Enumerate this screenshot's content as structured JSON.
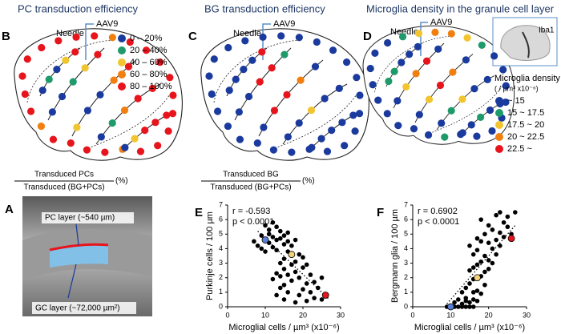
{
  "panels": {
    "B": {
      "letter": "B",
      "title": "PC transduction efficiency",
      "needle": "Needle",
      "vector": "AAV9",
      "legend": [
        {
          "label": "0 – 20%",
          "color": "#1a3a9e"
        },
        {
          "label": "20 – 40%",
          "color": "#1f9a6a"
        },
        {
          "label": "40 – 60%",
          "color": "#f2c530"
        },
        {
          "label": "60 – 80%",
          "color": "#f07f10"
        },
        {
          "label": "80 – 100%",
          "color": "#e8141c"
        }
      ],
      "formula": {
        "numerator": "Transduced PCs",
        "denominator": "Transduced (BG+PCs)",
        "unit": "(%)"
      },
      "dots": [
        4,
        4,
        4,
        4,
        4,
        4,
        3,
        4,
        4,
        4,
        4,
        4,
        4,
        4,
        4,
        4,
        3,
        4,
        4,
        4,
        4,
        3,
        4,
        4,
        0,
        1,
        0,
        2,
        4,
        0,
        0,
        1,
        2,
        4,
        2,
        0,
        0,
        3,
        4,
        0,
        1,
        3,
        4,
        4,
        0,
        2,
        4,
        4,
        4
      ]
    },
    "C": {
      "letter": "C",
      "title": "BG transduction efficiency",
      "needle": "Needle",
      "vector": "AAV9",
      "formula": {
        "numerator": "Transduced BG",
        "denominator": "Transduced (BG+PCs)",
        "unit": "(%)"
      },
      "dots": [
        0,
        0,
        0,
        0,
        0,
        0,
        0,
        0,
        0,
        0,
        0,
        0,
        0,
        0,
        0,
        0,
        0,
        0,
        0,
        0,
        0,
        0,
        0,
        0,
        0,
        0,
        0,
        0,
        4,
        0,
        0,
        4,
        4,
        1,
        0,
        4,
        4,
        3,
        0,
        0,
        0,
        2,
        0,
        0,
        0,
        0,
        0,
        0,
        0
      ]
    },
    "D": {
      "letter": "D",
      "title": "Microglia density in the granule cell layer",
      "needle": "Needle",
      "vector": "AAV9",
      "inset_label": "Iba1",
      "legend_title": "Microglia density",
      "legend_unit": "( / µm³ x10⁻⁶)",
      "legend": [
        {
          "label": "~ 15",
          "color": "#1a3a9e"
        },
        {
          "label": "15 ~ 17.5",
          "color": "#1f9a6a"
        },
        {
          "label": "17.5 ~ 20",
          "color": "#f2c530"
        },
        {
          "label": "20 ~ 22.5",
          "color": "#f07f10"
        },
        {
          "label": "22.5 ~",
          "color": "#e8141c"
        }
      ],
      "dots": [
        0,
        0,
        0,
        1,
        2,
        3,
        3,
        2,
        1,
        0,
        0,
        0,
        0,
        0,
        0,
        0,
        0,
        1,
        0,
        0,
        0,
        0,
        0,
        0,
        1,
        1,
        0,
        0,
        0,
        0,
        2,
        3,
        4,
        0,
        0,
        2,
        4,
        3,
        0,
        0,
        1,
        2,
        0,
        0,
        0,
        0,
        1,
        0,
        0
      ]
    },
    "A": {
      "letter": "A",
      "pc_label": "PC layer (~540 µm)",
      "gc_label": "GC layer (~72,000 µm²)"
    }
  },
  "chart_data": [
    {
      "type": "scatter",
      "letter": "E",
      "xlabel": "Microglial cells / µm³ (x10⁻⁶)",
      "ylabel": "Purkinje cells / 100 µm",
      "annotations": [
        "r = -0.593",
        "p < 0.0001"
      ],
      "xlim": [
        0,
        30
      ],
      "xticks": [
        0,
        10,
        20,
        30
      ],
      "ylim": [
        0,
        7
      ],
      "yticks": [
        0,
        1,
        2,
        3,
        4,
        5,
        6,
        7
      ],
      "color": "#000000",
      "x": [
        7,
        8,
        9,
        9,
        10,
        10,
        11,
        11,
        11,
        12,
        12,
        12,
        12,
        13,
        13,
        13,
        13,
        13,
        14,
        14,
        14,
        14,
        14,
        15,
        15,
        15,
        15,
        15,
        15,
        16,
        16,
        16,
        16,
        16,
        17,
        17,
        17,
        18,
        18,
        18,
        18,
        19,
        19,
        19,
        20,
        20,
        20,
        21,
        21,
        21,
        22,
        22,
        23,
        23,
        24,
        25,
        25
      ],
      "y": [
        4.5,
        4.2,
        4.9,
        4.0,
        5.6,
        3.8,
        5.3,
        5.0,
        4.4,
        5.8,
        4.8,
        4.1,
        1.9,
        5.5,
        4.6,
        3.9,
        2.3,
        0.8,
        5.2,
        4.7,
        3.0,
        2.1,
        1.3,
        4.9,
        4.3,
        3.3,
        2.6,
        1.5,
        0.5,
        5.1,
        4.5,
        3.8,
        2.2,
        1.0,
        4.2,
        2.9,
        1.8,
        4.6,
        3.1,
        2.4,
        0.3,
        3.6,
        2.0,
        0.8,
        3.4,
        2.7,
        1.2,
        2.9,
        1.6,
        0.4,
        2.2,
        1.0,
        1.7,
        0.6,
        1.3,
        2.0,
        0.5
      ],
      "highlights": {
        "x": [
          10,
          17,
          26
        ],
        "y": [
          4.6,
          3.6,
          0.8
        ],
        "colors": [
          "#5b7fd6",
          "#f2d27a",
          "#e8141c"
        ]
      },
      "trendline": {
        "x": [
          8,
          27
        ],
        "y": [
          5.2,
          0.5
        ]
      }
    },
    {
      "type": "scatter",
      "letter": "F",
      "xlabel": "Microglial cells / µm³ (x10⁻⁶)",
      "ylabel": "Bergmann glia / 100 µm",
      "annotations": [
        "r = 0.6902",
        "p < 0.0001"
      ],
      "xlim": [
        0,
        30
      ],
      "xticks": [
        0,
        10,
        20,
        30
      ],
      "ylim": [
        0,
        7
      ],
      "yticks": [
        0,
        1,
        2,
        3,
        4,
        5,
        6,
        7
      ],
      "color": "#000000",
      "x": [
        9,
        10,
        11,
        11,
        12,
        12,
        13,
        13,
        13,
        14,
        14,
        14,
        14,
        15,
        15,
        15,
        15,
        15,
        16,
        16,
        16,
        16,
        16,
        16,
        17,
        17,
        17,
        17,
        17,
        18,
        18,
        18,
        18,
        18,
        19,
        19,
        19,
        19,
        20,
        20,
        20,
        20,
        21,
        21,
        21,
        22,
        22,
        22,
        23,
        23,
        23,
        24,
        24,
        25,
        25,
        26,
        27
      ],
      "y": [
        0,
        0,
        0,
        0.3,
        0,
        0.5,
        0,
        0.2,
        1.0,
        0,
        0.4,
        0.6,
        1.3,
        0,
        0.3,
        1.6,
        2.5,
        4.2,
        0,
        0.5,
        1.0,
        1.9,
        2.7,
        3.6,
        0.4,
        1.1,
        2.9,
        3.9,
        4.7,
        0.9,
        2.1,
        3.1,
        4.5,
        6.0,
        1.5,
        2.4,
        3.5,
        5.0,
        2.6,
        3.2,
        4.4,
        5.6,
        3.0,
        4.0,
        5.3,
        3.6,
        4.6,
        6.3,
        4.2,
        5.1,
        6.5,
        5.8,
        4.8,
        5.5,
        6.2,
        5.0,
        6.5
      ],
      "highlights": {
        "x": [
          10,
          17,
          26
        ],
        "y": [
          0,
          2,
          4.7
        ],
        "colors": [
          "#5b7fd6",
          "#f2d27a",
          "#e8141c"
        ]
      },
      "trendline": {
        "x": [
          9,
          27
        ],
        "y": [
          0.2,
          5.6
        ]
      }
    }
  ]
}
